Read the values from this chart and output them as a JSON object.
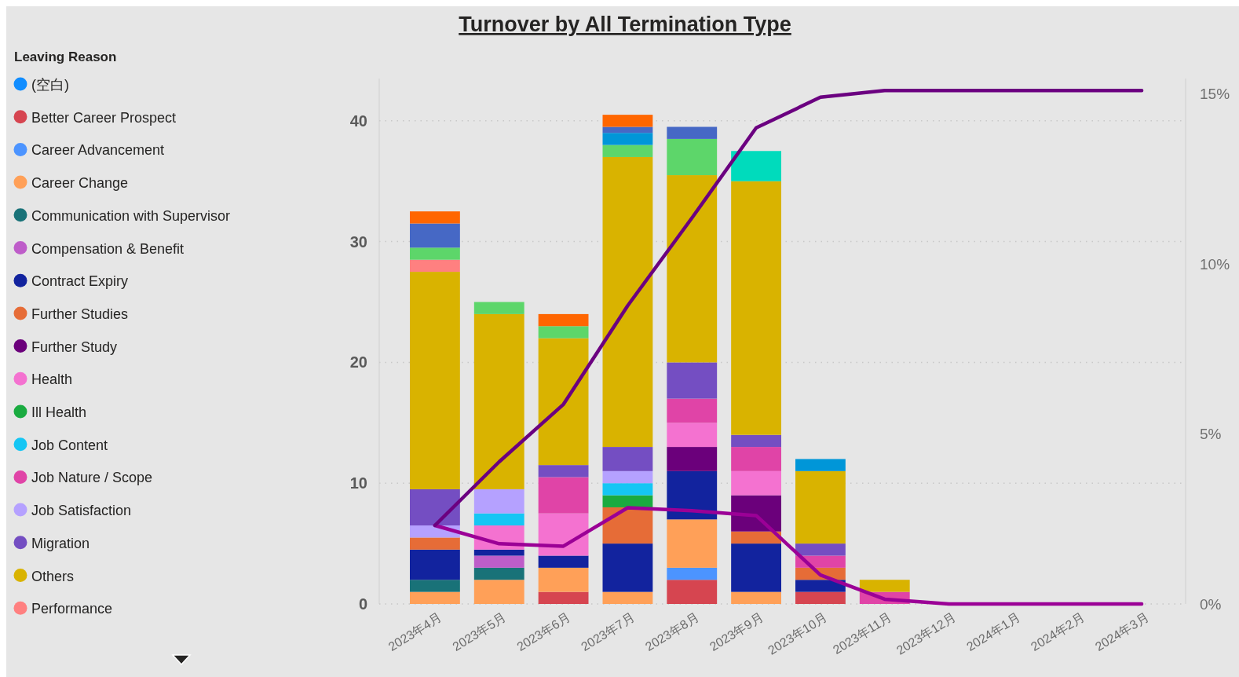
{
  "chart_data": {
    "type": "bar",
    "title": "Turnover by All Termination Type",
    "legend_title": "Leaving Reason",
    "legend": "left",
    "stacked": true,
    "grid": "y",
    "categories": [
      "2023年4月",
      "2023年5月",
      "2023年6月",
      "2023年7月",
      "2023年8月",
      "2023年9月",
      "2023年10月",
      "2023年11月",
      "2023年12月",
      "2024年1月",
      "2024年2月",
      "2024年3月"
    ],
    "ylim": [
      0,
      43.5
    ],
    "yticks": [
      0,
      10,
      20,
      30,
      40
    ],
    "y2lim": [
      0,
      15.45
    ],
    "y2ticks": [
      {
        "value": 0,
        "label": "0%"
      },
      {
        "value": 5,
        "label": "5%"
      },
      {
        "value": 10,
        "label": "10%"
      },
      {
        "value": 15,
        "label": "15%"
      }
    ],
    "series": [
      {
        "name": "(空白)",
        "color": "#118dff",
        "values": [
          null,
          null,
          null,
          null,
          null,
          null,
          null,
          null,
          null,
          null,
          null,
          null
        ]
      },
      {
        "name": "Better Career Prospect",
        "color": "#d64550",
        "values": [
          null,
          null,
          1,
          null,
          2,
          null,
          1,
          null,
          null,
          null,
          null,
          null
        ]
      },
      {
        "name": "Career Advancement",
        "color": "#4c94ff",
        "values": [
          null,
          null,
          null,
          null,
          1,
          null,
          null,
          null,
          null,
          null,
          null,
          null
        ]
      },
      {
        "name": "Career Change",
        "color": "#ffa058",
        "values": [
          1,
          2,
          2,
          1,
          4,
          1,
          null,
          null,
          null,
          null,
          null,
          null
        ]
      },
      {
        "name": "Communication with Supervisor",
        "color": "#197278",
        "values": [
          1,
          1,
          null,
          null,
          null,
          null,
          null,
          null,
          null,
          null,
          null,
          null
        ]
      },
      {
        "name": "Compensation & Benefit",
        "color": "#be5dc9",
        "values": [
          null,
          1,
          null,
          null,
          null,
          null,
          null,
          null,
          null,
          null,
          null,
          null
        ]
      },
      {
        "name": "Contract Expiry",
        "color": "#12239e",
        "values": [
          2.5,
          0.5,
          1,
          4,
          4,
          4,
          1,
          null,
          null,
          null,
          null,
          null
        ]
      },
      {
        "name": "Further Studies",
        "color": "#e66c37",
        "values": [
          1,
          null,
          null,
          3,
          null,
          1,
          1,
          null,
          null,
          null,
          null,
          null
        ]
      },
      {
        "name": "Further Study",
        "color": "#6b007b",
        "values": [
          null,
          null,
          null,
          null,
          2,
          3,
          null,
          null,
          null,
          null,
          null,
          null
        ]
      },
      {
        "name": "Health",
        "color": "#f472d0",
        "values": [
          null,
          2,
          3.5,
          null,
          2,
          2,
          null,
          null,
          null,
          null,
          null,
          null
        ]
      },
      {
        "name": "Ill Health",
        "color": "#1aab40",
        "values": [
          null,
          null,
          null,
          1,
          null,
          null,
          null,
          null,
          null,
          null,
          null,
          null
        ]
      },
      {
        "name": "Job Content",
        "color": "#15c6f4",
        "values": [
          null,
          1,
          null,
          1,
          null,
          null,
          null,
          null,
          null,
          null,
          null,
          null
        ]
      },
      {
        "name": "Job Nature / Scope",
        "color": "#e044a7",
        "values": [
          null,
          null,
          3,
          null,
          2,
          2,
          1,
          1,
          null,
          null,
          null,
          null
        ]
      },
      {
        "name": "Job Satisfaction",
        "color": "#b5a1ff",
        "values": [
          1,
          2,
          null,
          1,
          null,
          null,
          null,
          null,
          null,
          null,
          null,
          null
        ]
      },
      {
        "name": "Migration",
        "color": "#744ec2",
        "values": [
          3,
          null,
          1,
          2,
          3,
          1,
          1,
          null,
          null,
          null,
          null,
          null
        ]
      },
      {
        "name": "Others",
        "color": "#d9b300",
        "values": [
          18,
          14.5,
          10.5,
          24,
          15.5,
          21,
          6,
          1,
          null,
          null,
          null,
          null
        ]
      },
      {
        "name": "Performance",
        "color": "#ff8080",
        "values": [
          1,
          null,
          null,
          null,
          null,
          null,
          null,
          null,
          null,
          null,
          null,
          null
        ]
      },
      {
        "color": "#5dd66a",
        "values": [
          1,
          1,
          1,
          1,
          3,
          null,
          null,
          null,
          null,
          null,
          null,
          null
        ]
      },
      {
        "color": "#0096d8",
        "values": [
          null,
          null,
          null,
          1,
          null,
          null,
          1,
          null,
          null,
          null,
          null,
          null
        ]
      },
      {
        "color": "#4668c5",
        "values": [
          2,
          null,
          null,
          0.5,
          1,
          null,
          null,
          null,
          null,
          null,
          null,
          null
        ]
      },
      {
        "color": "#00dbbc",
        "values": [
          null,
          null,
          null,
          null,
          null,
          2.5,
          null,
          null,
          null,
          null,
          null,
          null
        ]
      },
      {
        "color": "#ff6600",
        "values": [
          1,
          null,
          1,
          1,
          null,
          null,
          null,
          null,
          null,
          null,
          null,
          null
        ]
      },
      {
        "type": "line",
        "axis": "y2",
        "color": "#9b0096",
        "values": [
          2.31,
          1.77,
          1.7,
          2.83,
          2.74,
          2.6,
          0.85,
          0.14,
          0,
          0,
          0,
          0
        ]
      },
      {
        "type": "line",
        "axis": "y2",
        "color": "#6b0080",
        "values": [
          2.31,
          4.18,
          5.87,
          8.77,
          11.35,
          14.0,
          14.9,
          15.1,
          15.1,
          15.1,
          15.1,
          15.1
        ]
      }
    ]
  }
}
